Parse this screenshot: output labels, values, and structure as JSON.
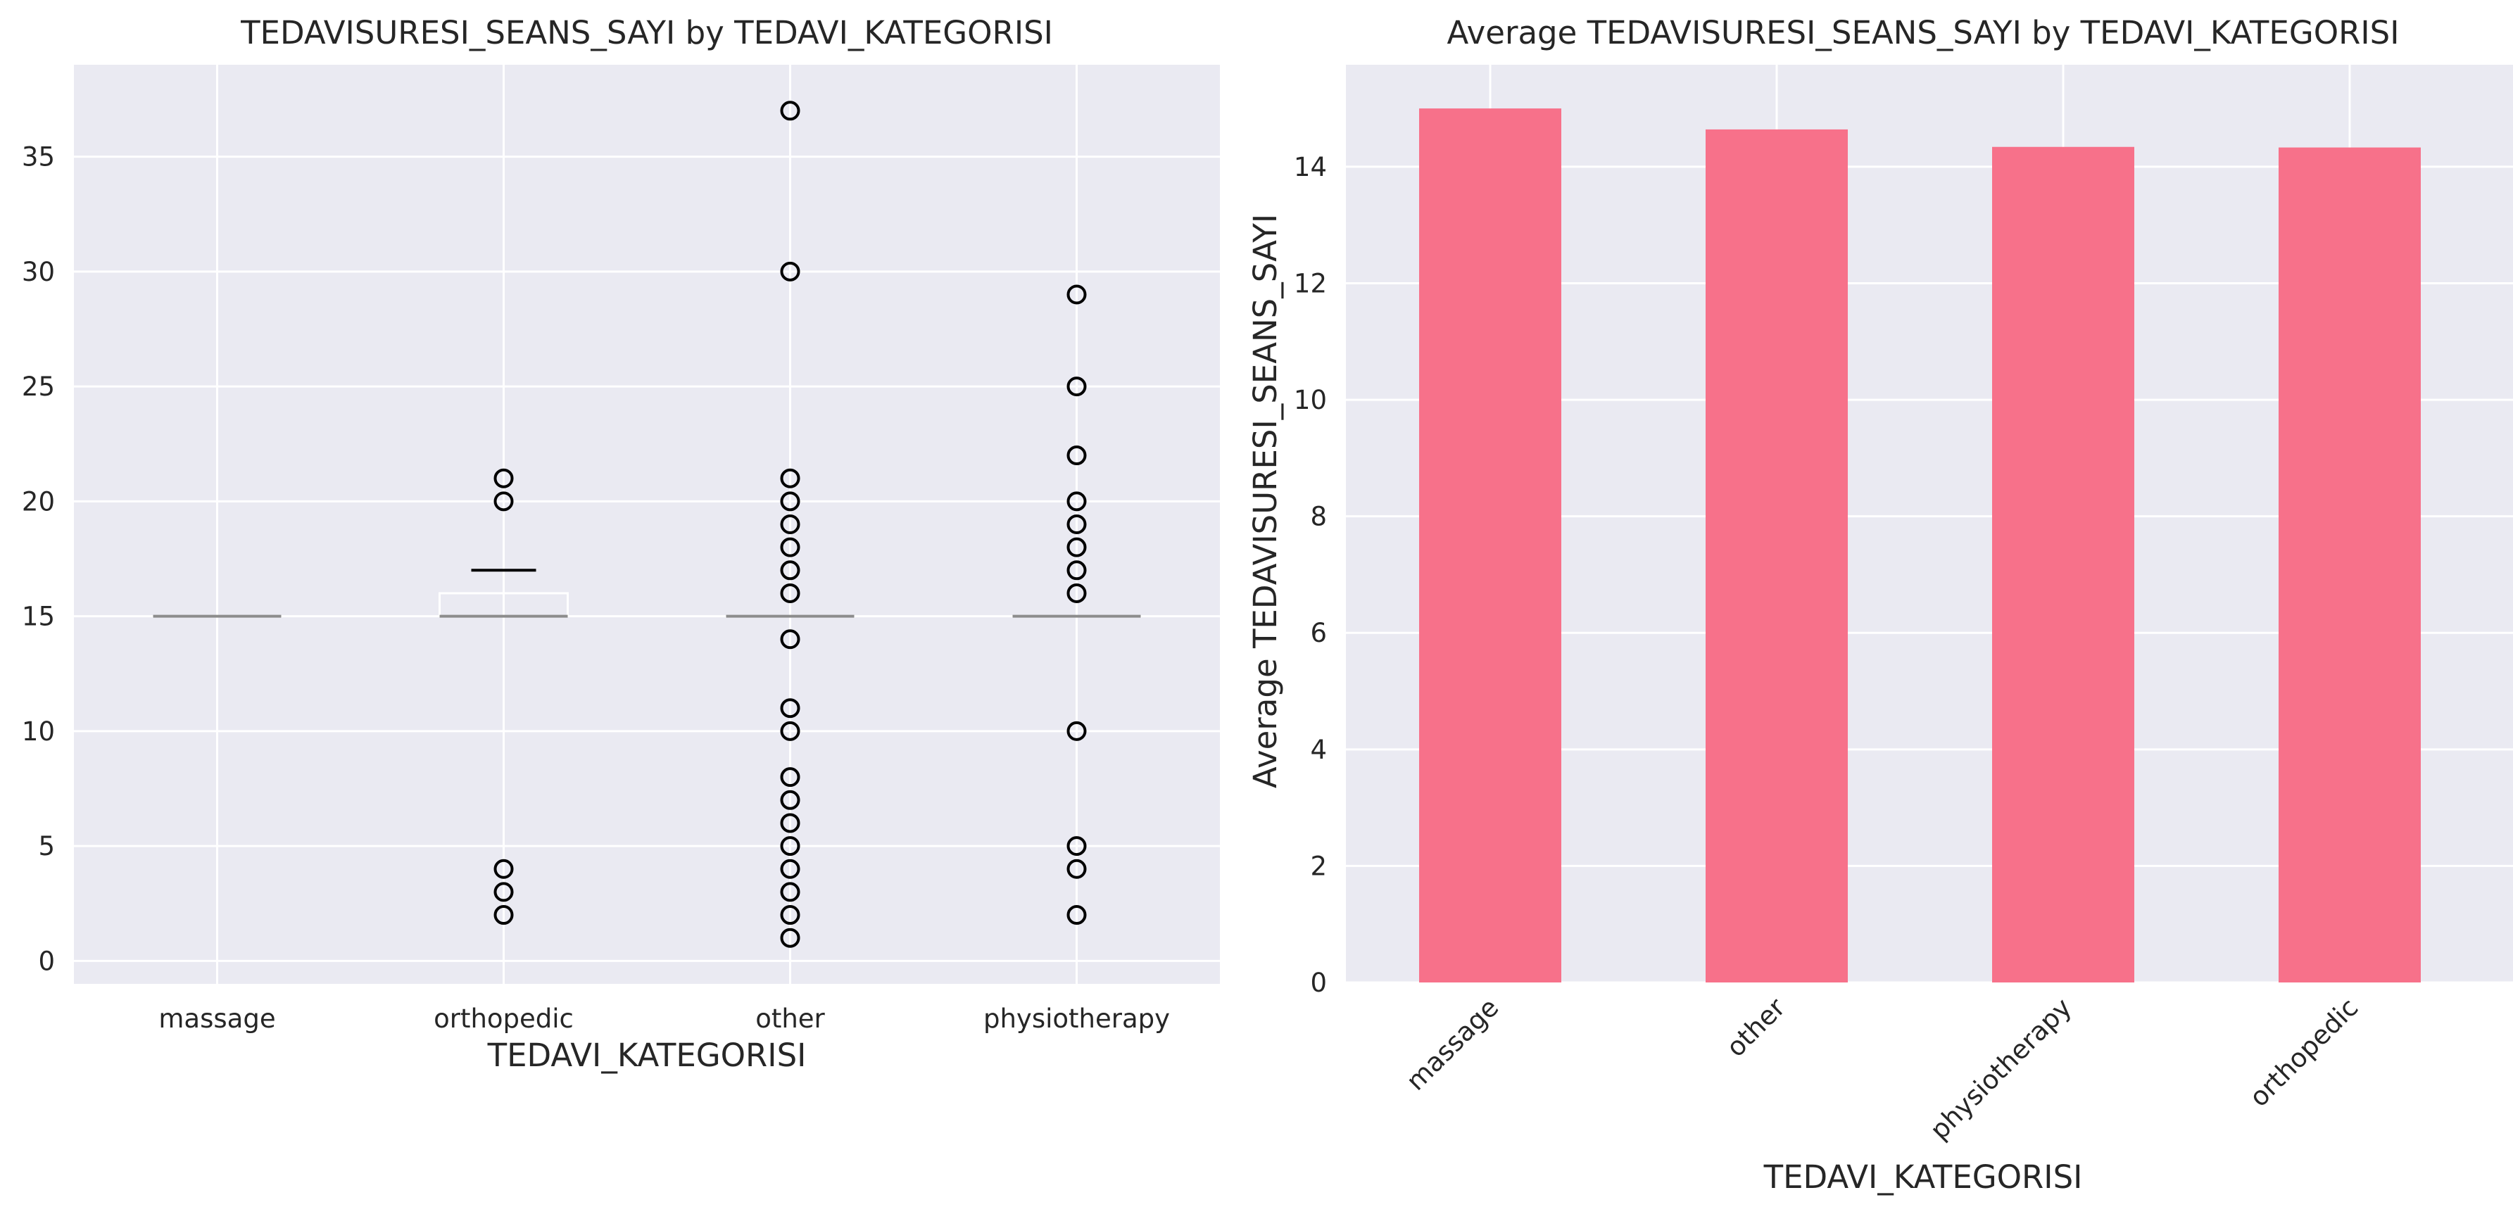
{
  "chart_data": [
    {
      "type": "box",
      "title": "TEDAVISURESI_SEANS_SAYI by TEDAVI_KATEGORISI",
      "xlabel": "TEDAVI_KATEGORISI",
      "ylabel": "",
      "categories": [
        "massage",
        "orthopedic",
        "other",
        "physiotherapy"
      ],
      "ylim": [
        -1,
        39
      ],
      "yticks": [
        0,
        5,
        10,
        15,
        20,
        25,
        30,
        35
      ],
      "grid": true,
      "colors": {
        "background": "#EAEAF2",
        "grid": "#FFFFFF",
        "box": "#FFFFFF",
        "median": "#8C8C8C",
        "whisker": "#000000",
        "flier": "#000000"
      },
      "boxes": [
        {
          "category": "massage",
          "q1": 15,
          "median": 15,
          "q3": 15,
          "whisker_low": 15,
          "whisker_high": 15,
          "outliers": []
        },
        {
          "category": "orthopedic",
          "q1": 15,
          "median": 15,
          "q3": 16,
          "whisker_low": 15,
          "whisker_high": 17,
          "outliers": [
            2,
            3,
            4,
            20,
            21
          ]
        },
        {
          "category": "other",
          "q1": 15,
          "median": 15,
          "q3": 15,
          "whisker_low": 15,
          "whisker_high": 15,
          "outliers": [
            1,
            2,
            3,
            4,
            5,
            6,
            7,
            8,
            10,
            11,
            14,
            16,
            17,
            18,
            19,
            20,
            21,
            30,
            37
          ]
        },
        {
          "category": "physiotherapy",
          "q1": 15,
          "median": 15,
          "q3": 15,
          "whisker_low": 15,
          "whisker_high": 15,
          "outliers": [
            2,
            4,
            5,
            10,
            16,
            17,
            18,
            19,
            20,
            22,
            25,
            29
          ]
        }
      ]
    },
    {
      "type": "bar",
      "title": "Average TEDAVISURESI_SEANS_SAYI by TEDAVI_KATEGORISI",
      "xlabel": "TEDAVI_KATEGORISI",
      "ylabel": "Average TEDAVISURESI_SEANS_SAYI",
      "categories": [
        "massage",
        "other",
        "physiotherapy",
        "orthopedic"
      ],
      "values": [
        15.0,
        14.64,
        14.34,
        14.33
      ],
      "ylim": [
        0,
        15.75
      ],
      "yticks": [
        0,
        2,
        4,
        6,
        8,
        10,
        12,
        14
      ],
      "xtick_rotation": 45,
      "grid": true,
      "colors": {
        "background": "#EAEAF2",
        "grid": "#FFFFFF",
        "bar": "#F7718A"
      }
    }
  ]
}
